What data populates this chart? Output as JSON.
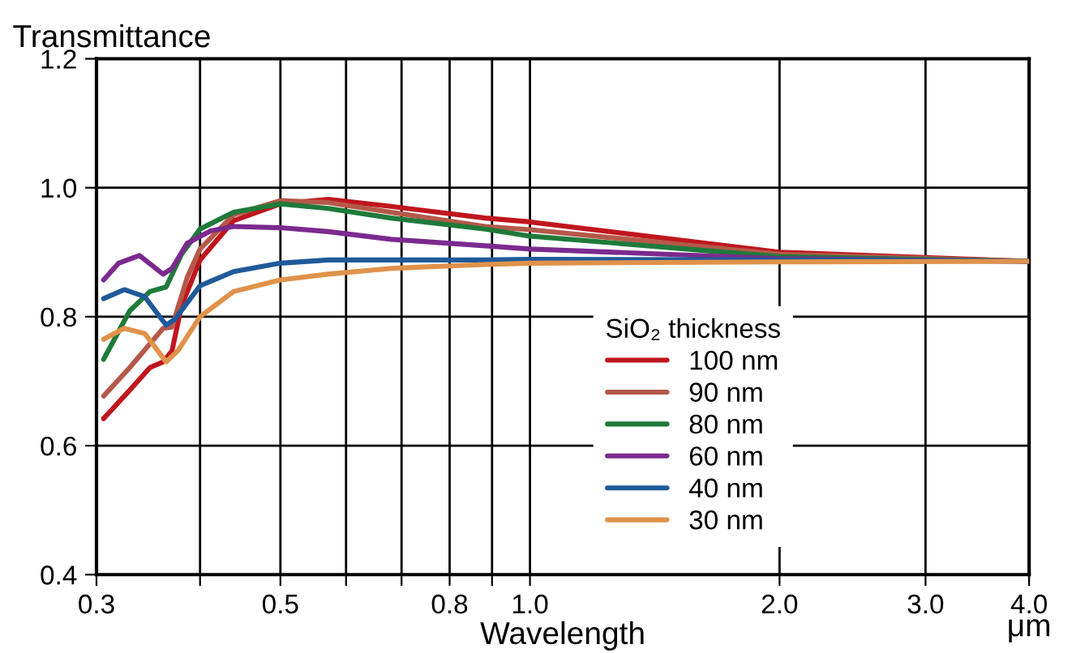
{
  "chart_data": {
    "type": "line",
    "xlabel": "Wavelength",
    "ylabel": "Transmittance",
    "legend_title": "SiO₂ thickness",
    "annotations": [
      "μm"
    ],
    "log": "x",
    "xlim": [
      0.3,
      4.0
    ],
    "ylim": [
      0.4,
      1.2
    ],
    "xticks": [
      0.3,
      {
        "value": 0.4,
        "label": null
      },
      0.5,
      {
        "value": 0.6,
        "label": null
      },
      {
        "value": 0.7,
        "label": null
      },
      0.8,
      {
        "value": 0.9,
        "label": null
      },
      {
        "value": 1.0,
        "label": "1.0"
      },
      {
        "value": 2.0,
        "label": "2.0"
      },
      {
        "value": 3.0,
        "label": "3.0"
      },
      {
        "value": 4.0,
        "label": "4.0"
      }
    ],
    "yticks": [
      0.4,
      0.6,
      0.8,
      {
        "value": 1.0,
        "label": "1.0"
      },
      1.2
    ],
    "grid": true,
    "legend": "bottom right",
    "marker": "none",
    "line_style": "solid",
    "series": [
      {
        "name": "100 nm",
        "color": "#c0161d",
        "x": [
          0.306,
          0.329,
          0.348,
          0.361,
          0.37,
          0.38,
          0.4,
          0.439,
          0.5,
          0.571,
          0.68,
          0.883,
          1.0,
          2.0,
          4.0
        ],
        "values": [
          0.642,
          0.686,
          0.721,
          0.73,
          0.747,
          0.817,
          0.888,
          0.949,
          0.975,
          0.982,
          0.971,
          0.953,
          0.947,
          0.9,
          0.886
        ]
      },
      {
        "name": "90 nm",
        "color": "#b5584a",
        "x": [
          0.306,
          0.329,
          0.361,
          0.37,
          0.386,
          0.4,
          0.439,
          0.5,
          0.571,
          0.68,
          0.883,
          1.0,
          2.0,
          4.0
        ],
        "values": [
          0.677,
          0.721,
          0.782,
          0.784,
          0.861,
          0.905,
          0.958,
          0.98,
          0.977,
          0.962,
          0.94,
          0.935,
          0.897,
          0.886
        ]
      },
      {
        "name": "80 nm",
        "color": "#1f7a3a",
        "x": [
          0.306,
          0.329,
          0.348,
          0.364,
          0.38,
          0.4,
          0.439,
          0.5,
          0.571,
          0.68,
          0.883,
          1.0,
          2.0,
          4.0
        ],
        "values": [
          0.734,
          0.809,
          0.839,
          0.846,
          0.897,
          0.936,
          0.962,
          0.975,
          0.968,
          0.953,
          0.936,
          0.925,
          0.893,
          0.886
        ]
      },
      {
        "name": "60 nm",
        "color": "#7b2a8e",
        "x": [
          0.306,
          0.319,
          0.338,
          0.361,
          0.37,
          0.386,
          0.412,
          0.439,
          0.5,
          0.571,
          0.68,
          0.883,
          1.0,
          2.0,
          4.0
        ],
        "values": [
          0.857,
          0.883,
          0.895,
          0.866,
          0.875,
          0.914,
          0.933,
          0.94,
          0.938,
          0.932,
          0.92,
          0.91,
          0.905,
          0.89,
          0.886
        ]
      },
      {
        "name": "40 nm",
        "color": "#1f5a9a",
        "x": [
          0.306,
          0.324,
          0.343,
          0.364,
          0.373,
          0.4,
          0.439,
          0.5,
          0.571,
          0.883,
          1.0,
          2.0,
          4.0
        ],
        "values": [
          0.828,
          0.842,
          0.831,
          0.787,
          0.796,
          0.848,
          0.87,
          0.883,
          0.888,
          0.888,
          0.889,
          0.888,
          0.886
        ]
      },
      {
        "name": "30 nm",
        "color": "#e0924a",
        "x": [
          0.306,
          0.324,
          0.343,
          0.364,
          0.376,
          0.4,
          0.439,
          0.5,
          0.571,
          0.68,
          0.883,
          1.0,
          2.0,
          4.0
        ],
        "values": [
          0.765,
          0.782,
          0.774,
          0.73,
          0.747,
          0.8,
          0.839,
          0.857,
          0.866,
          0.875,
          0.881,
          0.883,
          0.885,
          0.886
        ]
      }
    ]
  }
}
